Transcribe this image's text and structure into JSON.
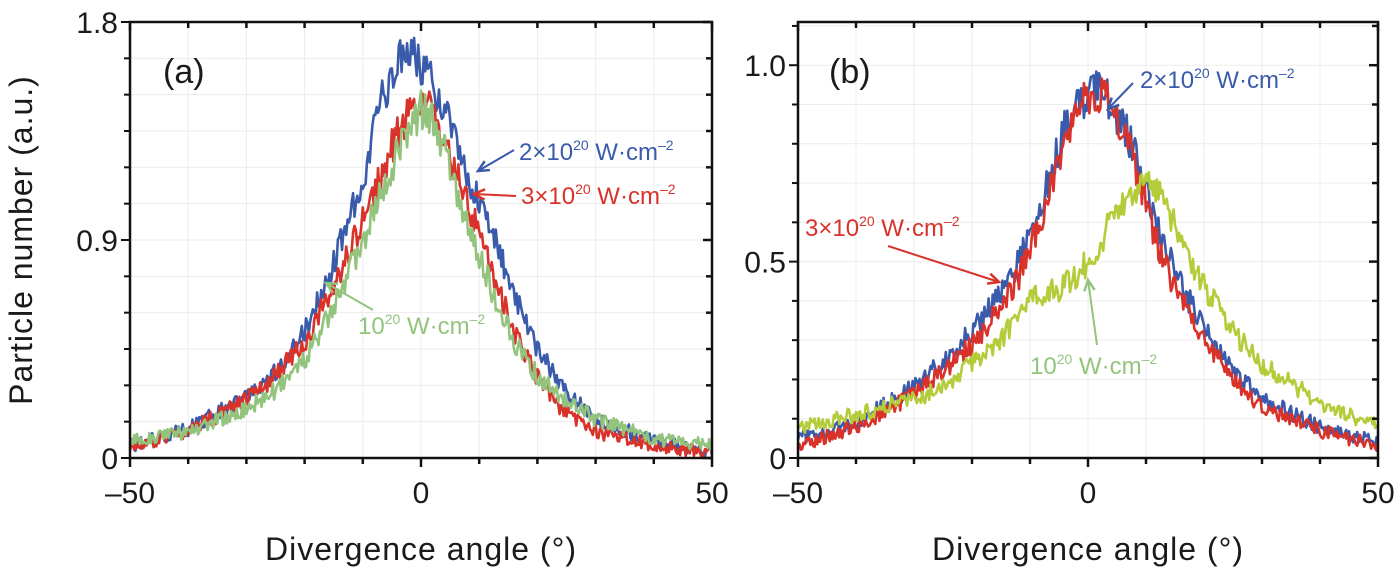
{
  "chart_data": [
    {
      "type": "line",
      "panel_label": "(a)",
      "xlabel": "Divergence angle (°)",
      "ylabel": "Particle number (a.u.)",
      "xlim": [
        -50,
        50
      ],
      "ylim": [
        0,
        1.8
      ],
      "xticks": [
        -50,
        0,
        50
      ],
      "xtick_labels": [
        "–50",
        "0",
        "50"
      ],
      "yticks": [
        0,
        0.9,
        1.8
      ],
      "ytick_labels": [
        "0",
        "0.9",
        "1.8"
      ],
      "grid": true,
      "series": [
        {
          "name": "2×10^20 W·cm^-2",
          "label_main": "2×10",
          "label_sup": "20",
          "label_unit": " W·cm",
          "label_unit_sup": "–2",
          "color": "#3a5bab",
          "x": [
            -50,
            -40,
            -30,
            -25,
            -20,
            -15,
            -10,
            -7,
            -5,
            -3,
            -1,
            0,
            2,
            4,
            6,
            8,
            10,
            13,
            16,
            20,
            25,
            30,
            40,
            50
          ],
          "y": [
            0.05,
            0.12,
            0.25,
            0.36,
            0.52,
            0.8,
            1.15,
            1.45,
            1.6,
            1.66,
            1.68,
            1.62,
            1.55,
            1.45,
            1.3,
            1.18,
            1.05,
            0.88,
            0.68,
            0.45,
            0.27,
            0.16,
            0.07,
            0.03
          ]
        },
        {
          "name": "3×10^20 W·cm^-2",
          "label_main": "3×10",
          "label_sup": "20",
          "label_unit": " W·cm",
          "label_unit_sup": "–2",
          "color": "#d8322a",
          "x": [
            -50,
            -40,
            -30,
            -25,
            -20,
            -15,
            -10,
            -7,
            -5,
            -3,
            -1,
            0,
            2,
            4,
            6,
            8,
            10,
            13,
            16,
            20,
            25,
            30,
            40,
            50
          ],
          "y": [
            0.04,
            0.11,
            0.24,
            0.34,
            0.48,
            0.7,
            0.98,
            1.15,
            1.28,
            1.38,
            1.47,
            1.5,
            1.42,
            1.3,
            1.18,
            1.05,
            0.92,
            0.72,
            0.52,
            0.33,
            0.18,
            0.11,
            0.05,
            0.02
          ]
        },
        {
          "name": "10^20 W·cm^-2",
          "label_main": "10",
          "label_sup": "20",
          "label_unit": " W·cm",
          "label_unit_sup": "–2",
          "color": "#93c47d",
          "x": [
            -50,
            -40,
            -30,
            -25,
            -20,
            -15,
            -10,
            -7,
            -5,
            -3,
            -1,
            0,
            2,
            4,
            6,
            8,
            10,
            13,
            16,
            20,
            25,
            30,
            40,
            50
          ],
          "y": [
            0.07,
            0.11,
            0.2,
            0.28,
            0.4,
            0.62,
            0.9,
            1.08,
            1.2,
            1.32,
            1.4,
            1.44,
            1.4,
            1.28,
            1.12,
            0.98,
            0.84,
            0.64,
            0.48,
            0.34,
            0.24,
            0.16,
            0.08,
            0.05
          ]
        }
      ]
    },
    {
      "type": "line",
      "panel_label": "(b)",
      "xlabel": "Divergence angle (°)",
      "ylabel": "",
      "xlim": [
        -50,
        50
      ],
      "ylim": [
        0,
        1.11
      ],
      "xticks": [
        -50,
        0,
        50
      ],
      "xtick_labels": [
        "–50",
        "0",
        "50"
      ],
      "yticks": [
        0,
        0.5,
        1.0
      ],
      "ytick_labels": [
        "0",
        "0.5",
        "1.0"
      ],
      "grid": true,
      "series": [
        {
          "name": "2×10^20 W·cm^-2",
          "label_main": "2×10",
          "label_sup": "20",
          "label_unit": " W·cm",
          "label_unit_sup": "–2",
          "color": "#3a5bab",
          "x": [
            -50,
            -40,
            -30,
            -25,
            -20,
            -15,
            -12,
            -10,
            -7,
            -5,
            -3,
            0,
            2,
            4,
            6,
            8,
            10,
            13,
            16,
            20,
            25,
            30,
            40,
            50
          ],
          "y": [
            0.05,
            0.09,
            0.18,
            0.25,
            0.32,
            0.42,
            0.5,
            0.58,
            0.7,
            0.8,
            0.88,
            0.93,
            0.94,
            0.9,
            0.85,
            0.78,
            0.68,
            0.55,
            0.44,
            0.33,
            0.22,
            0.15,
            0.08,
            0.04
          ]
        },
        {
          "name": "3×10^20 W·cm^-2",
          "label_main": "3×10",
          "label_sup": "20",
          "label_unit": " W·cm",
          "label_unit_sup": "–2",
          "color": "#d8322a",
          "x": [
            -50,
            -40,
            -30,
            -25,
            -20,
            -15,
            -12,
            -10,
            -7,
            -5,
            -3,
            0,
            2,
            4,
            6,
            8,
            10,
            13,
            16,
            20,
            25,
            30,
            40,
            50
          ],
          "y": [
            0.03,
            0.08,
            0.16,
            0.22,
            0.29,
            0.38,
            0.46,
            0.53,
            0.65,
            0.76,
            0.85,
            0.92,
            0.93,
            0.9,
            0.84,
            0.76,
            0.64,
            0.5,
            0.4,
            0.3,
            0.2,
            0.13,
            0.07,
            0.03
          ]
        },
        {
          "name": "10^20 W·cm^-2",
          "label_main": "10",
          "label_sup": "20",
          "label_unit": " W·cm",
          "label_unit_sup": "–2",
          "color": "#b5cc3a",
          "x": [
            -50,
            -40,
            -30,
            -25,
            -20,
            -15,
            -12,
            -10,
            -7,
            -5,
            -3,
            0,
            2,
            4,
            6,
            8,
            10,
            12,
            14,
            16,
            20,
            25,
            30,
            40,
            50
          ],
          "y": [
            0.08,
            0.11,
            0.15,
            0.18,
            0.24,
            0.3,
            0.36,
            0.4,
            0.42,
            0.43,
            0.45,
            0.5,
            0.54,
            0.62,
            0.66,
            0.68,
            0.7,
            0.68,
            0.62,
            0.55,
            0.44,
            0.32,
            0.24,
            0.14,
            0.08
          ]
        }
      ]
    }
  ]
}
